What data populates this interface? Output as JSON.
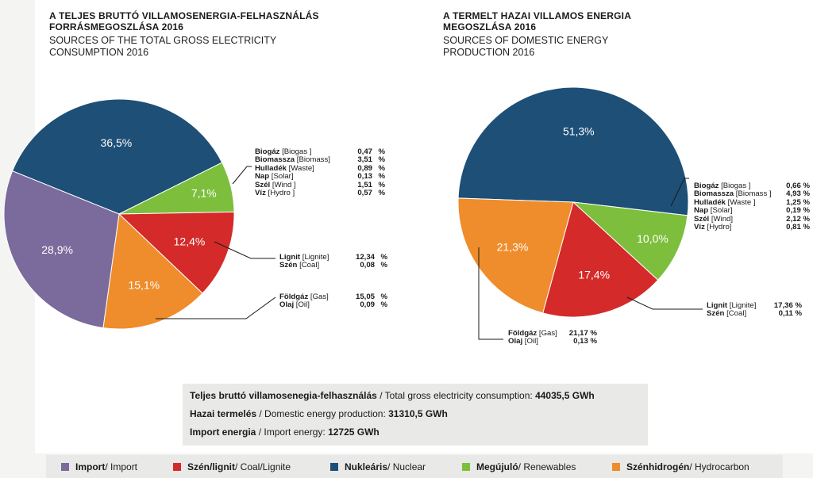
{
  "colors": {
    "import": "#7b6a9c",
    "coal": "#d42a2a",
    "nuclear": "#1d4f77",
    "renewables": "#7dbf3c",
    "hydrocarbon": "#ef8c2b"
  },
  "chart_data": [
    {
      "type": "pie",
      "title_hu": "A TELJES BRUTTÓ VILLAMOSENERGIA-FELHASZNÁLÁS FORRÁSMEGOSZLÁSA 2016",
      "title_en": "SOURCES OF THE TOTAL GROSS ELECTRICITY CONSUMPTION 2016",
      "slices": [
        {
          "key": "nuclear",
          "value": 36.5,
          "label": "36,5%"
        },
        {
          "key": "renewables",
          "value": 7.1,
          "label": "7,1%"
        },
        {
          "key": "coal",
          "value": 12.4,
          "label": "12,4%"
        },
        {
          "key": "hydrocarbon",
          "value": 15.1,
          "label": "15,1%"
        },
        {
          "key": "import",
          "value": 28.9,
          "label": "28,9%"
        }
      ],
      "breakdowns": [
        {
          "group": "renewables",
          "items": [
            {
              "name_bold": "Biogáz",
              "name": "[Biogas ]",
              "value": "0,47",
              "unit": "%"
            },
            {
              "name_bold": "Biomassza",
              "name": "[Biomass]",
              "value": "3,51",
              "unit": "%"
            },
            {
              "name_bold": "Hulladék",
              "name": "[Waste]",
              "value": "0,89",
              "unit": "%"
            },
            {
              "name_bold": "Nap",
              "name": "[Solar]",
              "value": "0,13",
              "unit": "%"
            },
            {
              "name_bold": "Szél",
              "name": "[Wind ]",
              "value": "1,51",
              "unit": "%"
            },
            {
              "name_bold": "Víz",
              "name": "[Hydro ]",
              "value": "0,57",
              "unit": "%"
            }
          ]
        },
        {
          "group": "coal",
          "items": [
            {
              "name_bold": "Lignit",
              "name": "[Lignite]",
              "value": "12,34",
              "unit": "%"
            },
            {
              "name_bold": "Szén",
              "name": "[Coal]",
              "value": "0,08",
              "unit": "%"
            }
          ]
        },
        {
          "group": "hydrocarbon",
          "items": [
            {
              "name_bold": "Földgáz",
              "name": "[Gas]",
              "value": "15,05",
              "unit": "%"
            },
            {
              "name_bold": "Olaj",
              "name": "[Oil]",
              "value": "0,09",
              "unit": "%"
            }
          ]
        }
      ]
    },
    {
      "type": "pie",
      "title_hu": "A TERMELT HAZAI VILLAMOS ENERGIA MEGOSZLÁSA 2016",
      "title_en": "SOURCES OF DOMESTIC ENERGY PRODUCTION 2016",
      "slices": [
        {
          "key": "nuclear",
          "value": 51.3,
          "label": "51,3%"
        },
        {
          "key": "renewables",
          "value": 10.0,
          "label": "10,0%"
        },
        {
          "key": "coal",
          "value": 17.4,
          "label": "17,4%"
        },
        {
          "key": "hydrocarbon",
          "value": 21.3,
          "label": "21,3%"
        }
      ],
      "breakdowns": [
        {
          "group": "renewables",
          "items": [
            {
              "name_bold": "Biogáz",
              "name": "[Biogas ]",
              "value": "0,66",
              "unit": "%"
            },
            {
              "name_bold": "Biomassza",
              "name": "[Biomass ]",
              "value": "4,93",
              "unit": "%"
            },
            {
              "name_bold": "Hulladék",
              "name": "[Waste ]",
              "value": "1,25",
              "unit": "%"
            },
            {
              "name_bold": "Nap",
              "name": "[Solar]",
              "value": "0,19",
              "unit": "%"
            },
            {
              "name_bold": "Szél",
              "name": "[Wind]",
              "value": "2,12",
              "unit": "%"
            },
            {
              "name_bold": "Víz",
              "name": "[Hydro]",
              "value": "0,81",
              "unit": "%"
            }
          ]
        },
        {
          "group": "coal",
          "items": [
            {
              "name_bold": "Lignit",
              "name": "[Lignite]",
              "value": "17,36",
              "unit": "%"
            },
            {
              "name_bold": "Szén",
              "name": "[Coal]",
              "value": "0,11",
              "unit": "%"
            }
          ]
        },
        {
          "group": "hydrocarbon",
          "items": [
            {
              "name_bold": "Földgáz",
              "name": "[Gas]",
              "value": "21,17",
              "unit": "%"
            },
            {
              "name_bold": "Olaj",
              "name": "[Oil]",
              "value": "0,13",
              "unit": "%"
            }
          ]
        }
      ]
    }
  ],
  "info": [
    {
      "bold": "Teljes bruttó villamosenegia-felhasználás",
      "text": " / Total gross electricity consumption: ",
      "value": "44035,5 GWh"
    },
    {
      "bold": "Hazai termelés",
      "text": " / Domestic energy production: ",
      "value": "31310,5 GWh"
    },
    {
      "bold": "Import energia",
      "text": " / Import energy: ",
      "value": "12725 GWh"
    }
  ],
  "legend": [
    {
      "key": "import",
      "bold": "Import",
      "text": " / Import"
    },
    {
      "key": "coal",
      "bold": "Szén/lignit",
      "text": " / Coal/Lignite"
    },
    {
      "key": "nuclear",
      "bold": "Nukleáris",
      "text": " / Nuclear"
    },
    {
      "key": "renewables",
      "bold": "Megújuló",
      "text": " / Renewables"
    },
    {
      "key": "hydrocarbon",
      "bold": "Szénhidrogén",
      "text": " / Hydrocarbon"
    }
  ]
}
